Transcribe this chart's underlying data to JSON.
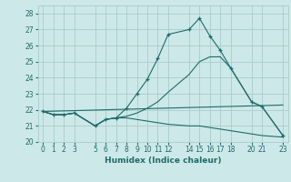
{
  "title": "",
  "xlabel": "Humidex (Indice chaleur)",
  "xlim": [
    -0.5,
    23.5
  ],
  "ylim": [
    20,
    28.5
  ],
  "yticks": [
    20,
    21,
    22,
    23,
    24,
    25,
    26,
    27,
    28
  ],
  "xticks": [
    0,
    1,
    2,
    3,
    5,
    6,
    7,
    8,
    9,
    10,
    11,
    12,
    14,
    15,
    16,
    17,
    18,
    20,
    21,
    23
  ],
  "bg_color": "#cde8e8",
  "grid_color": "#aacccc",
  "line_color": "#1e6b6b",
  "series": [
    {
      "x": [
        0,
        1,
        2,
        3,
        5,
        6,
        7,
        8,
        9,
        10,
        11,
        12,
        14,
        15,
        16,
        17,
        18,
        20,
        21,
        23
      ],
      "y": [
        21.9,
        21.7,
        21.7,
        21.8,
        21.0,
        21.4,
        21.5,
        22.1,
        23.0,
        23.9,
        25.2,
        26.7,
        27.0,
        27.7,
        26.6,
        25.7,
        24.6,
        22.5,
        22.2,
        20.4
      ],
      "marker": "+"
    },
    {
      "x": [
        0,
        1,
        2,
        3,
        5,
        6,
        7,
        8,
        9,
        10,
        11,
        12,
        14,
        15,
        16,
        17,
        18,
        20,
        21,
        23
      ],
      "y": [
        21.9,
        21.7,
        21.7,
        21.8,
        21.0,
        21.4,
        21.5,
        21.5,
        21.4,
        21.3,
        21.2,
        21.1,
        21.0,
        21.0,
        20.9,
        20.8,
        20.7,
        20.5,
        20.4,
        20.3
      ],
      "marker": null
    },
    {
      "x": [
        0,
        1,
        2,
        3,
        5,
        6,
        7,
        8,
        9,
        10,
        11,
        12,
        14,
        15,
        16,
        17,
        18,
        20,
        21,
        23
      ],
      "y": [
        21.9,
        21.7,
        21.7,
        21.8,
        21.0,
        21.4,
        21.5,
        21.6,
        21.8,
        22.1,
        22.5,
        23.1,
        24.2,
        25.0,
        25.3,
        25.3,
        24.6,
        22.5,
        22.2,
        20.4
      ],
      "marker": null
    },
    {
      "x": [
        0,
        23
      ],
      "y": [
        21.9,
        22.3
      ],
      "marker": null
    }
  ]
}
